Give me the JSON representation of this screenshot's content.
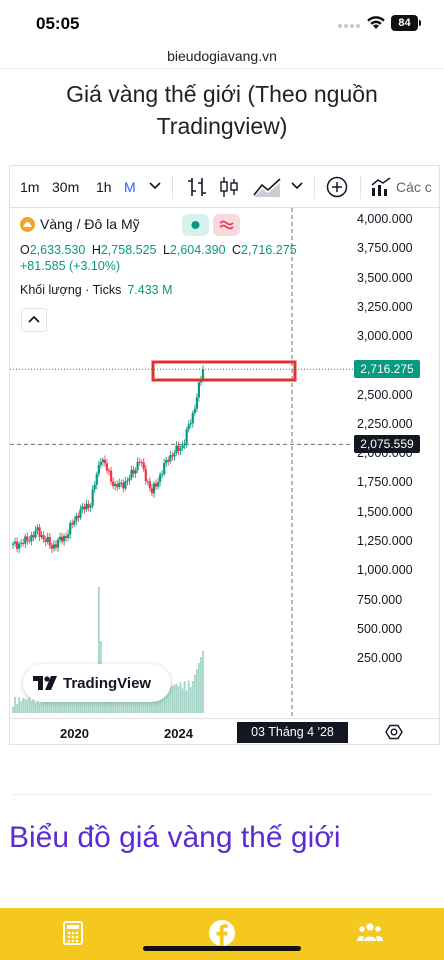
{
  "status_bar": {
    "time": "05:05",
    "battery": "84"
  },
  "browser": {
    "url": "bieudogiavang.vn"
  },
  "page_title": "Giá vàng thế giới (Theo nguồn Tradingview)",
  "toolbar": {
    "intervals": [
      "1m",
      "30m",
      "1h",
      "M"
    ],
    "active_interval": "M",
    "compare_label": "Các c"
  },
  "legend": {
    "symbol": "Vàng / Đô la Mỹ",
    "open_label": "O",
    "open": "2,633.530",
    "high_label": "H",
    "high": "2,758.525",
    "low_label": "L",
    "low": "2,604.390",
    "close_label": "C",
    "close": "2,716.275",
    "change": "+81.585 (+3.10%)",
    "volume_label": "Khối lượng · Ticks",
    "volume": "7.433 M"
  },
  "price_axis": {
    "labels": [
      "4,000.000",
      "3,750.000",
      "3,500.000",
      "3,250.000",
      "3,000.000",
      "2,750.000",
      "2,500.000",
      "2,250.000",
      "2,000.000",
      "1,750.000",
      "1,500.000",
      "1,250.000",
      "1,000.000",
      "750.000",
      "500.000",
      "250.000"
    ],
    "last_price": "2,716.275",
    "crosshair_price": "2,075.559",
    "volume_tag": "7.433 M"
  },
  "time_axis": {
    "labels": [
      "2020",
      "2024"
    ],
    "crosshair_date": "03 Tháng 4 '28"
  },
  "branding": {
    "logo_text": "TradingView"
  },
  "section_heading": "Biểu đồ giá vàng thế giới",
  "chart_data": {
    "type": "candlestick",
    "interval": "monthly",
    "y_range": [
      250,
      4000
    ],
    "last_close": 2716.275,
    "crosshair_price": 2075.559,
    "close_path": [
      {
        "x": "2017-01",
        "y": 1210
      },
      {
        "x": "2017-07",
        "y": 1245
      },
      {
        "x": "2018-01",
        "y": 1335
      },
      {
        "x": "2018-08",
        "y": 1200
      },
      {
        "x": "2019-03",
        "y": 1295
      },
      {
        "x": "2019-09",
        "y": 1490
      },
      {
        "x": "2020-03",
        "y": 1575
      },
      {
        "x": "2020-08",
        "y": 1970
      },
      {
        "x": "2021-03",
        "y": 1710
      },
      {
        "x": "2021-09",
        "y": 1760
      },
      {
        "x": "2022-03",
        "y": 1940
      },
      {
        "x": "2022-09",
        "y": 1660
      },
      {
        "x": "2023-05",
        "y": 1960
      },
      {
        "x": "2023-12",
        "y": 2065
      },
      {
        "x": "2024-05",
        "y": 2330
      },
      {
        "x": "2024-10",
        "y": 2716
      }
    ],
    "colors": {
      "up": "#089981",
      "down": "#f23645",
      "volume": "#a5d6c9"
    }
  }
}
